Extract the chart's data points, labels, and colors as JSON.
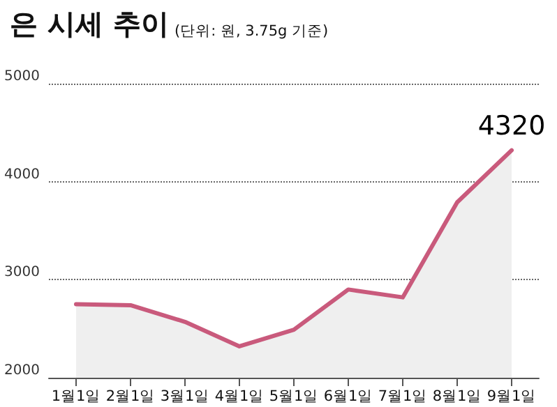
{
  "chart_data": {
    "type": "area",
    "title": "은 시세 추이",
    "subtitle": "(단위: 원, 3.75g 기준)",
    "categories": [
      "1월1일",
      "2월1일",
      "3월1일",
      "4월1일",
      "5월1일",
      "6월1일",
      "7월1일",
      "8월1일",
      "9월1일"
    ],
    "series": [
      {
        "color": "#c95a7c",
        "values": [
          2750,
          2740,
          2570,
          2320,
          2490,
          2900,
          2820,
          3790,
          4320
        ],
        "value_labels": [
          null,
          null,
          null,
          null,
          null,
          null,
          null,
          null,
          "4320"
        ]
      }
    ],
    "ylim": [
      2000,
      5000
    ],
    "yticks": [
      2000,
      3000,
      4000,
      5000
    ],
    "grid": "y",
    "marker": "none",
    "line_style": "solid"
  }
}
